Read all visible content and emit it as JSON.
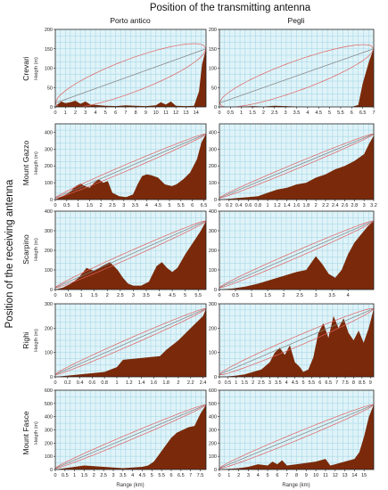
{
  "figure": {
    "title_top": "Position of the transmitting antenna",
    "title_left": "Position of the receiving antenna",
    "columns": [
      "Porto antico",
      "Pegli"
    ],
    "rows": [
      "Crevari",
      "Mount Gazzo",
      "Scarpino",
      "Righi",
      "Mount Fasce"
    ],
    "xlabel": "Range (km)",
    "ylabel": "Heigth (m)"
  },
  "colors": {
    "terrain": "#7a2a0a",
    "plot_bg": "#dff3f8",
    "grid": "#9fd3e4",
    "fresnel": "#e06060",
    "los": "#808080"
  },
  "chart_data": [
    {
      "type": "area",
      "row": "Crevari",
      "column": "Porto antico",
      "xlim": [
        0,
        15
      ],
      "ylim": [
        0,
        200
      ],
      "xticks": [
        "0",
        "1",
        "2",
        "3",
        "4",
        "5",
        "6",
        "7",
        "8",
        "9",
        "10",
        "11",
        "12",
        "13",
        "14"
      ],
      "xtick_vals": [
        0,
        1,
        2,
        3,
        4,
        5,
        6,
        7,
        8,
        9,
        10,
        11,
        12,
        13,
        14
      ],
      "yticks": [
        "0",
        "50",
        "100",
        "150",
        "200"
      ],
      "ytick_vals": [
        0,
        50,
        100,
        150,
        200
      ],
      "antenna_start": 10,
      "antenna_end": 150,
      "fresnel_max": 45,
      "x": [
        0,
        0.3,
        0.6,
        1,
        1.5,
        2,
        2.5,
        3,
        3.5,
        4,
        5,
        6,
        7,
        8,
        9,
        10,
        10.5,
        11,
        11.5,
        12,
        13,
        13.8,
        14.3,
        14.6,
        15
      ],
      "y": [
        0,
        8,
        14,
        10,
        12,
        16,
        8,
        14,
        6,
        5,
        3,
        2,
        4,
        3,
        2,
        4,
        12,
        6,
        14,
        3,
        2,
        3,
        40,
        110,
        150
      ]
    },
    {
      "type": "area",
      "row": "Crevari",
      "column": "Pegli",
      "xlim": [
        0,
        7
      ],
      "ylim": [
        0,
        200
      ],
      "xticks": [
        "0",
        "0.5",
        "1",
        "1.5",
        "2",
        "2.5",
        "3",
        "3.5",
        "4",
        "4.5",
        "5",
        "5.5",
        "6",
        "6.5",
        "7"
      ],
      "xtick_vals": [
        0,
        0.5,
        1,
        1.5,
        2,
        2.5,
        3,
        3.5,
        4,
        4.5,
        5,
        5.5,
        6,
        6.5,
        7
      ],
      "yticks": [
        "0",
        "50",
        "100",
        "150",
        "200"
      ],
      "ytick_vals": [
        0,
        50,
        100,
        150,
        200
      ],
      "antenna_start": 10,
      "antenna_end": 150,
      "fresnel_max": 40,
      "x": [
        0,
        0.5,
        1,
        1.5,
        2,
        2.5,
        3,
        3.5,
        4,
        4.5,
        5,
        5.5,
        6,
        6.3,
        6.5,
        6.8,
        7
      ],
      "y": [
        0,
        0,
        0,
        2,
        1,
        3,
        2,
        1,
        0,
        0,
        0,
        0,
        0,
        5,
        60,
        120,
        150
      ]
    },
    {
      "type": "area",
      "row": "Mount Gazzo",
      "column": "Porto antico",
      "xlim": [
        0,
        6.6
      ],
      "ylim": [
        0,
        450
      ],
      "xticks": [
        "0",
        "0.5",
        "1",
        "1.5",
        "2",
        "2.5",
        "3",
        "3.5",
        "4",
        "4.5",
        "5",
        "5.5",
        "6",
        "6.5"
      ],
      "xtick_vals": [
        0,
        0.5,
        1,
        1.5,
        2,
        2.5,
        3,
        3.5,
        4,
        4.5,
        5,
        5.5,
        6,
        6.5
      ],
      "yticks": [
        "0",
        "100",
        "200",
        "300",
        "400"
      ],
      "ytick_vals": [
        0,
        100,
        200,
        300,
        400
      ],
      "antenna_start": 10,
      "antenna_end": 390,
      "fresnel_max": 20,
      "x": [
        0,
        0.3,
        0.6,
        0.9,
        1.1,
        1.3,
        1.5,
        1.7,
        1.9,
        2.1,
        2.3,
        2.5,
        2.8,
        3.1,
        3.4,
        3.6,
        3.8,
        4,
        4.2,
        4.5,
        4.8,
        5.1,
        5.3,
        5.6,
        5.9,
        6.2,
        6.4,
        6.6
      ],
      "y": [
        0,
        20,
        40,
        80,
        95,
        80,
        70,
        100,
        120,
        100,
        110,
        40,
        20,
        15,
        30,
        90,
        140,
        150,
        145,
        130,
        90,
        80,
        90,
        120,
        160,
        240,
        340,
        390
      ]
    },
    {
      "type": "area",
      "row": "Mount Gazzo",
      "column": "Pegli",
      "xlim": [
        0,
        3.2
      ],
      "ylim": [
        0,
        450
      ],
      "xticks": [
        "0",
        "0.2",
        "0.4",
        "0.6",
        "0.8",
        "1",
        "1.2",
        "1.4",
        "1.6",
        "1.8",
        "2",
        "2.2",
        "2.4",
        "2.6",
        "2.8",
        "3",
        "3.2"
      ],
      "xtick_vals": [
        0,
        0.2,
        0.4,
        0.6,
        0.8,
        1,
        1.2,
        1.4,
        1.6,
        1.8,
        2,
        2.2,
        2.4,
        2.6,
        2.8,
        3,
        3.2
      ],
      "yticks": [
        "0",
        "100",
        "200",
        "300",
        "400"
      ],
      "ytick_vals": [
        0,
        100,
        200,
        300,
        400
      ],
      "antenna_start": 10,
      "antenna_end": 390,
      "fresnel_max": 18,
      "x": [
        0,
        0.2,
        0.4,
        0.6,
        0.8,
        1,
        1.2,
        1.4,
        1.6,
        1.8,
        2,
        2.2,
        2.4,
        2.6,
        2.8,
        3,
        3.1,
        3.2
      ],
      "y": [
        0,
        5,
        10,
        15,
        20,
        40,
        60,
        70,
        90,
        100,
        130,
        150,
        180,
        200,
        230,
        270,
        330,
        380
      ]
    },
    {
      "type": "area",
      "row": "Scarpino",
      "column": "Porto antico",
      "xlim": [
        0,
        5.8
      ],
      "ylim": [
        0,
        400
      ],
      "xticks": [
        "0",
        "0.5",
        "1",
        "1.5",
        "2",
        "2.5",
        "3",
        "3.5",
        "4",
        "4.5",
        "5",
        "5.5"
      ],
      "xtick_vals": [
        0,
        0.5,
        1,
        1.5,
        2,
        2.5,
        3,
        3.5,
        4,
        4.5,
        5,
        5.5
      ],
      "yticks": [
        "0",
        "100",
        "200",
        "300",
        "400"
      ],
      "ytick_vals": [
        0,
        100,
        200,
        300,
        400
      ],
      "antenna_start": 10,
      "antenna_end": 350,
      "fresnel_max": 18,
      "x": [
        0,
        0.3,
        0.6,
        0.9,
        1.2,
        1.5,
        1.8,
        2.1,
        2.4,
        2.6,
        2.8,
        3,
        3.3,
        3.6,
        3.9,
        4.1,
        4.3,
        4.5,
        4.7,
        5,
        5.3,
        5.6,
        5.8
      ],
      "y": [
        0,
        10,
        30,
        60,
        110,
        95,
        120,
        140,
        100,
        60,
        30,
        20,
        20,
        40,
        120,
        140,
        110,
        90,
        110,
        180,
        240,
        300,
        350
      ]
    },
    {
      "type": "area",
      "row": "Scarpino",
      "column": "Pegli",
      "xlim": [
        0,
        4.8
      ],
      "ylim": [
        0,
        400
      ],
      "xticks": [
        "0",
        "0.5",
        "1",
        "1.5",
        "2",
        "2.5",
        "3",
        "3.5",
        "4"
      ],
      "xtick_vals": [
        0,
        0.5,
        1,
        1.5,
        2,
        2.5,
        3,
        3.5,
        4
      ],
      "yticks": [
        "0",
        "100",
        "200",
        "300",
        "400"
      ],
      "ytick_vals": [
        0,
        100,
        200,
        300,
        400
      ],
      "antenna_start": 10,
      "antenna_end": 350,
      "fresnel_max": 18,
      "x": [
        0,
        0.4,
        0.8,
        1.2,
        1.6,
        2,
        2.4,
        2.7,
        3,
        3.2,
        3.4,
        3.6,
        3.8,
        4,
        4.2,
        4.4,
        4.6,
        4.8
      ],
      "y": [
        0,
        5,
        15,
        30,
        50,
        70,
        90,
        100,
        170,
        130,
        80,
        60,
        100,
        180,
        240,
        280,
        320,
        350
      ]
    },
    {
      "type": "area",
      "row": "Righi",
      "column": "Porto antico",
      "xlim": [
        0,
        2.45
      ],
      "ylim": [
        0,
        300
      ],
      "xticks": [
        "0",
        "0.2",
        "0.4",
        "0.6",
        "0.8",
        "1",
        "1.2",
        "1.4",
        "1.6",
        "1.8",
        "2",
        "2.2",
        "2.4"
      ],
      "xtick_vals": [
        0,
        0.2,
        0.4,
        0.6,
        0.8,
        1,
        1.2,
        1.4,
        1.6,
        1.8,
        2,
        2.2,
        2.4
      ],
      "yticks": [
        "0",
        "100",
        "200",
        "300"
      ],
      "ytick_vals": [
        0,
        100,
        200,
        300
      ],
      "antenna_start": 10,
      "antenna_end": 280,
      "fresnel_max": 15,
      "x": [
        0,
        0.2,
        0.4,
        0.6,
        0.8,
        1,
        1.1,
        1.3,
        1.5,
        1.7,
        1.8,
        2,
        2.2,
        2.4,
        2.45
      ],
      "y": [
        0,
        5,
        10,
        15,
        20,
        40,
        70,
        75,
        80,
        85,
        110,
        150,
        200,
        250,
        280
      ]
    },
    {
      "type": "area",
      "row": "Righi",
      "column": "Pegli",
      "xlim": [
        0,
        9.2
      ],
      "ylim": [
        0,
        300
      ],
      "xticks": [
        "0",
        "0.5",
        "1",
        "1.5",
        "2",
        "2.5",
        "3",
        "3.5",
        "4",
        "4.5",
        "5",
        "5.5",
        "6",
        "6.5",
        "7",
        "7.5",
        "8",
        "8.5",
        "9"
      ],
      "xtick_vals": [
        0,
        0.5,
        1,
        1.5,
        2,
        2.5,
        3,
        3.5,
        4,
        4.5,
        5,
        5.5,
        6,
        6.5,
        7,
        7.5,
        8,
        8.5,
        9
      ],
      "yticks": [
        "0",
        "100",
        "200",
        "300"
      ],
      "ytick_vals": [
        0,
        100,
        200,
        300
      ],
      "antenna_start": 10,
      "antenna_end": 280,
      "fresnel_max": 22,
      "x": [
        0,
        0.5,
        1,
        1.5,
        2,
        2.5,
        3,
        3.3,
        3.6,
        3.9,
        4.2,
        4.5,
        4.8,
        5,
        5.3,
        5.6,
        5.9,
        6.2,
        6.5,
        6.8,
        7.1,
        7.4,
        7.7,
        8,
        8.3,
        8.6,
        8.9,
        9.2
      ],
      "y": [
        0,
        2,
        5,
        10,
        20,
        30,
        60,
        100,
        120,
        90,
        130,
        60,
        40,
        20,
        30,
        80,
        180,
        220,
        160,
        250,
        200,
        240,
        180,
        150,
        190,
        140,
        200,
        280
      ]
    },
    {
      "type": "area",
      "row": "Mount Fasce",
      "column": "Porto antico",
      "xlim": [
        0,
        7.8
      ],
      "ylim": [
        0,
        600
      ],
      "xticks": [
        "0",
        "0.5",
        "1",
        "1.5",
        "2",
        "2.5",
        "3",
        "3.5",
        "4",
        "4.5",
        "5",
        "5.5",
        "6",
        "6.5",
        "7",
        "7.5"
      ],
      "xtick_vals": [
        0,
        0.5,
        1,
        1.5,
        2,
        2.5,
        3,
        3.5,
        4,
        4.5,
        5,
        5.5,
        6,
        6.5,
        7,
        7.5
      ],
      "yticks": [
        "0",
        "100",
        "200",
        "300",
        "400",
        "500",
        "600"
      ],
      "ytick_vals": [
        0,
        100,
        200,
        300,
        400,
        500,
        600
      ],
      "antenna_start": 10,
      "antenna_end": 490,
      "fresnel_max": 25,
      "x": [
        0,
        0.5,
        1,
        1.5,
        2,
        2.5,
        3,
        3.5,
        4,
        4.5,
        4.8,
        5.1,
        5.4,
        5.7,
        6,
        6.3,
        6.6,
        6.9,
        7.2,
        7.5,
        7.8
      ],
      "y": [
        0,
        10,
        20,
        30,
        25,
        20,
        15,
        10,
        15,
        20,
        30,
        60,
        120,
        180,
        240,
        280,
        300,
        320,
        330,
        420,
        490
      ]
    },
    {
      "type": "area",
      "row": "Mount Fasce",
      "column": "Pegli",
      "xlim": [
        0,
        16
      ],
      "ylim": [
        0,
        600
      ],
      "xticks": [
        "0",
        "1",
        "2",
        "3",
        "4",
        "5",
        "6",
        "7",
        "8",
        "9",
        "10",
        "11",
        "12",
        "13",
        "14",
        "15"
      ],
      "xtick_vals": [
        0,
        1,
        2,
        3,
        4,
        5,
        6,
        7,
        8,
        9,
        10,
        11,
        12,
        13,
        14,
        15
      ],
      "yticks": [
        "0",
        "100",
        "200",
        "300",
        "400",
        "500",
        "600"
      ],
      "ytick_vals": [
        0,
        100,
        200,
        300,
        400,
        500,
        600
      ],
      "antenna_start": 10,
      "antenna_end": 490,
      "fresnel_max": 30,
      "x": [
        0,
        1,
        2,
        3,
        4,
        5,
        5.5,
        6,
        6.5,
        7,
        8,
        9,
        10,
        11,
        11.5,
        12,
        13,
        14,
        14.5,
        15,
        15.5,
        16
      ],
      "y": [
        0,
        5,
        10,
        20,
        40,
        30,
        60,
        40,
        70,
        30,
        40,
        50,
        60,
        80,
        30,
        40,
        60,
        80,
        130,
        250,
        400,
        490
      ]
    }
  ]
}
